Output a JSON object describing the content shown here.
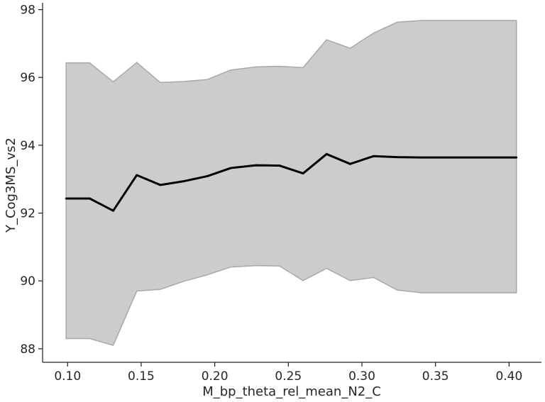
{
  "chart_data": {
    "type": "line",
    "xlabel": "M_bp_theta_rel_mean_N2_C",
    "ylabel": "Y_Cog3MS_vs2",
    "xlim": [
      0.083,
      0.422
    ],
    "ylim": [
      87.6,
      98.2
    ],
    "x_ticks": [
      "0.10",
      "0.15",
      "0.20",
      "0.25",
      "0.30",
      "0.35",
      "0.40"
    ],
    "y_ticks": [
      "88",
      "90",
      "92",
      "94",
      "96",
      "98"
    ],
    "grid": false,
    "colors": {
      "line": "#000000",
      "band_fill": "#cccccc",
      "band_edge": "#a8a8a8",
      "axis": "#262626"
    },
    "series": [
      {
        "x": [
          0.099,
          0.115,
          0.131,
          0.147,
          0.163,
          0.179,
          0.195,
          0.211,
          0.228,
          0.244,
          0.26,
          0.276,
          0.292,
          0.308,
          0.324,
          0.341,
          0.405
        ],
        "values": [
          92.43,
          92.43,
          92.07,
          93.12,
          92.83,
          92.94,
          93.09,
          93.33,
          93.41,
          93.4,
          93.17,
          93.74,
          93.45,
          93.68,
          93.65,
          93.64,
          93.64
        ],
        "lower": [
          88.3,
          88.3,
          88.1,
          89.7,
          89.75,
          89.99,
          90.18,
          90.41,
          90.45,
          90.44,
          90.01,
          90.37,
          90.01,
          90.1,
          89.73,
          89.65,
          89.65
        ],
        "upper": [
          96.43,
          96.43,
          95.87,
          96.44,
          95.85,
          95.88,
          95.94,
          96.22,
          96.31,
          96.33,
          96.29,
          97.11,
          96.86,
          97.31,
          97.63,
          97.68,
          97.68
        ]
      }
    ]
  }
}
